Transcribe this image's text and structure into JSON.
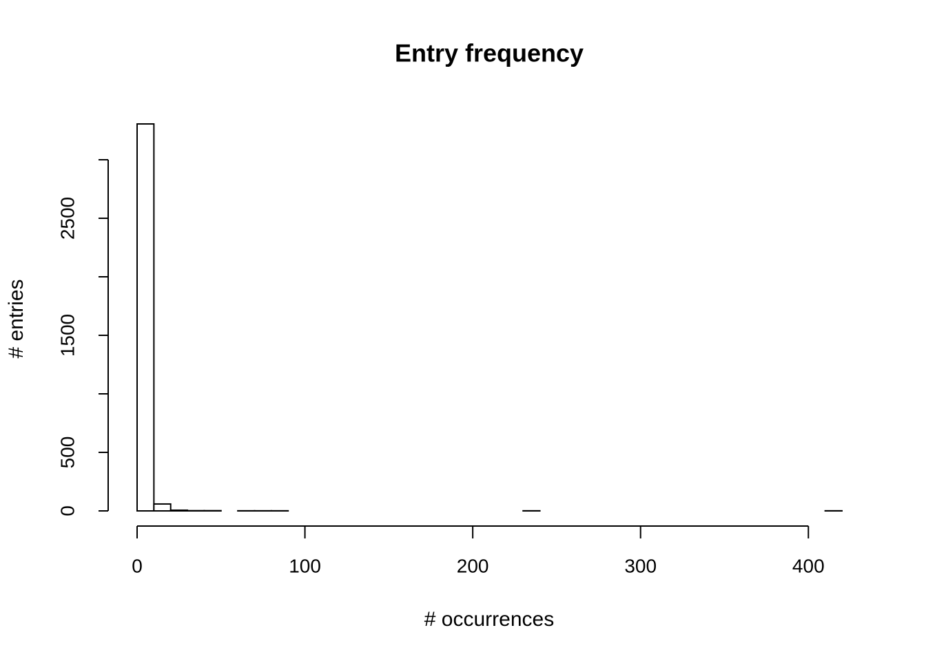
{
  "chart_data": {
    "type": "histogram",
    "title": "Entry frequency",
    "x_label": "# occurrences",
    "y_label": "# entries",
    "bins": [
      0,
      10,
      20,
      30,
      40,
      50,
      60,
      70,
      80,
      90,
      100,
      110,
      120,
      130,
      140,
      150,
      160,
      170,
      180,
      190,
      200,
      210,
      220,
      230,
      240,
      250,
      260,
      270,
      280,
      290,
      300,
      310,
      320,
      330,
      340,
      350,
      360,
      370,
      380,
      390,
      400,
      410,
      420
    ],
    "values": [
      3306,
      59,
      6,
      2,
      2,
      0,
      1,
      1,
      1,
      0,
      0,
      0,
      0,
      0,
      0,
      0,
      0,
      0,
      0,
      0,
      0,
      0,
      0,
      1,
      0,
      0,
      0,
      0,
      0,
      0,
      0,
      0,
      0,
      0,
      0,
      0,
      0,
      0,
      0,
      0,
      0,
      1
    ],
    "color": "#ffffff",
    "edge_color": "#000000",
    "xlim": [
      0,
      420
    ],
    "xticks": [
      0,
      100,
      200,
      300,
      400
    ],
    "ylim": [
      0,
      3306
    ],
    "yticks": [
      0,
      500,
      {
        "value": 1000,
        "label": null
      },
      1500,
      {
        "value": 2000,
        "label": null
      },
      2500,
      {
        "value": 3000,
        "label": null
      }
    ],
    "grid": false
  }
}
